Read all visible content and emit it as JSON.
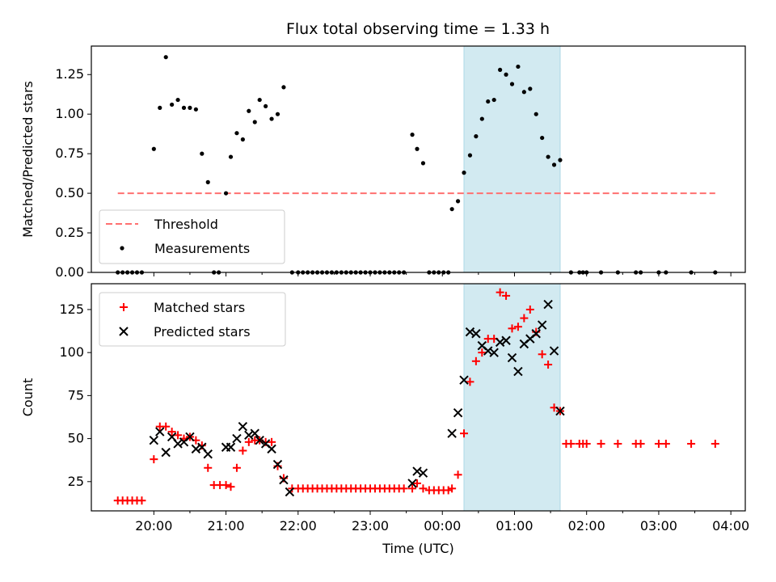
{
  "title": "Flux total observing time = 1.33 h",
  "colors": {
    "threshold": "#ff7070",
    "highlight": "#add8e6",
    "matched": "#ff0000",
    "predicted": "#000000",
    "measurement": "#000000"
  },
  "chart_data": [
    {
      "type": "scatter",
      "ylabel": "Matched/Predicted stars",
      "xlabel": "",
      "x_domain": [
        "19:08",
        "04:12"
      ],
      "ylim": [
        0,
        1.43
      ],
      "yticks": [
        "0.00",
        "0.25",
        "0.50",
        "0.75",
        "1.00",
        "1.25"
      ],
      "legend": {
        "position": "lower-left",
        "entries": [
          "Threshold",
          "Measurements"
        ]
      },
      "highlight": {
        "x0": "00:18",
        "x1": "01:38"
      },
      "threshold": {
        "name": "Threshold",
        "y": 0.5,
        "x": [
          "19:30",
          "03:47"
        ]
      },
      "series": [
        {
          "name": "Measurements",
          "points": [
            [
              "19:30",
              0
            ],
            [
              "19:34",
              0
            ],
            [
              "19:38",
              0
            ],
            [
              "19:42",
              0
            ],
            [
              "19:46",
              0
            ],
            [
              "19:50",
              0
            ],
            [
              "20:00",
              0.78
            ],
            [
              "20:05",
              1.04
            ],
            [
              "20:10",
              1.36
            ],
            [
              "20:15",
              1.06
            ],
            [
              "20:20",
              1.09
            ],
            [
              "20:25",
              1.04
            ],
            [
              "20:30",
              1.04
            ],
            [
              "20:35",
              1.03
            ],
            [
              "20:40",
              0.75
            ],
            [
              "20:45",
              0.57
            ],
            [
              "20:50",
              0
            ],
            [
              "20:54",
              0
            ],
            [
              "21:00",
              0.5
            ],
            [
              "21:04",
              0.73
            ],
            [
              "21:09",
              0.88
            ],
            [
              "21:14",
              0.84
            ],
            [
              "21:19",
              1.02
            ],
            [
              "21:24",
              0.95
            ],
            [
              "21:28",
              1.09
            ],
            [
              "21:33",
              1.05
            ],
            [
              "21:38",
              0.97
            ],
            [
              "21:43",
              1.0
            ],
            [
              "21:48",
              1.17
            ],
            [
              "21:55",
              0
            ],
            [
              "22:00",
              0
            ],
            [
              "22:04",
              0
            ],
            [
              "22:08",
              0
            ],
            [
              "22:12",
              0
            ],
            [
              "22:16",
              0
            ],
            [
              "22:20",
              0
            ],
            [
              "22:24",
              0
            ],
            [
              "22:28",
              0
            ],
            [
              "22:32",
              0
            ],
            [
              "22:36",
              0
            ],
            [
              "22:40",
              0
            ],
            [
              "22:44",
              0
            ],
            [
              "22:48",
              0
            ],
            [
              "22:52",
              0
            ],
            [
              "22:56",
              0
            ],
            [
              "23:00",
              0
            ],
            [
              "23:04",
              0
            ],
            [
              "23:08",
              0
            ],
            [
              "23:12",
              0
            ],
            [
              "23:16",
              0
            ],
            [
              "23:20",
              0
            ],
            [
              "23:24",
              0
            ],
            [
              "23:28",
              0
            ],
            [
              "23:35",
              0.87
            ],
            [
              "23:39",
              0.78
            ],
            [
              "23:44",
              0.69
            ],
            [
              "23:49",
              0
            ],
            [
              "23:53",
              0
            ],
            [
              "23:57",
              0
            ],
            [
              "00:01",
              0
            ],
            [
              "00:05",
              0
            ],
            [
              "00:08",
              0.4
            ],
            [
              "00:13",
              0.45
            ],
            [
              "00:18",
              0.63
            ],
            [
              "00:23",
              0.74
            ],
            [
              "00:28",
              0.86
            ],
            [
              "00:33",
              0.97
            ],
            [
              "00:38",
              1.08
            ],
            [
              "00:43",
              1.09
            ],
            [
              "00:48",
              1.28
            ],
            [
              "00:53",
              1.25
            ],
            [
              "00:58",
              1.19
            ],
            [
              "01:03",
              1.3
            ],
            [
              "01:08",
              1.14
            ],
            [
              "01:13",
              1.16
            ],
            [
              "01:18",
              1.0
            ],
            [
              "01:23",
              0.85
            ],
            [
              "01:28",
              0.73
            ],
            [
              "01:33",
              0.68
            ],
            [
              "01:38",
              0.71
            ],
            [
              "01:47",
              0
            ],
            [
              "01:54",
              0
            ],
            [
              "01:57",
              0
            ],
            [
              "02:00",
              0
            ],
            [
              "02:12",
              0
            ],
            [
              "02:26",
              0
            ],
            [
              "02:41",
              0
            ],
            [
              "02:45",
              0
            ],
            [
              "03:00",
              0
            ],
            [
              "03:06",
              0
            ],
            [
              "03:27",
              0
            ],
            [
              "03:47",
              0
            ]
          ]
        }
      ]
    },
    {
      "type": "scatter",
      "ylabel": "Count",
      "xlabel": "Time (UTC)",
      "x_domain": [
        "19:08",
        "04:12"
      ],
      "ylim": [
        8,
        140
      ],
      "yticks": [
        "25",
        "50",
        "75",
        "100",
        "125"
      ],
      "xticks": [
        "20:00",
        "21:00",
        "22:00",
        "23:00",
        "00:00",
        "01:00",
        "02:00",
        "03:00",
        "04:00"
      ],
      "legend": {
        "position": "top-left",
        "entries": [
          "Matched stars",
          "Predicted stars"
        ]
      },
      "highlight": {
        "x0": "00:18",
        "x1": "01:38"
      },
      "series": [
        {
          "name": "Matched stars",
          "marker": "plus",
          "points": [
            [
              "19:30",
              14
            ],
            [
              "19:34",
              14
            ],
            [
              "19:38",
              14
            ],
            [
              "19:42",
              14
            ],
            [
              "19:46",
              14
            ],
            [
              "19:50",
              14
            ],
            [
              "20:00",
              38
            ],
            [
              "20:05",
              57
            ],
            [
              "20:10",
              57
            ],
            [
              "20:15",
              54
            ],
            [
              "20:20",
              52
            ],
            [
              "20:25",
              50
            ],
            [
              "20:30",
              51
            ],
            [
              "20:35",
              49
            ],
            [
              "20:40",
              46
            ],
            [
              "20:45",
              33
            ],
            [
              "20:50",
              23
            ],
            [
              "20:55",
              23
            ],
            [
              "21:00",
              23
            ],
            [
              "21:04",
              22
            ],
            [
              "21:09",
              33
            ],
            [
              "21:14",
              43
            ],
            [
              "21:19",
              48
            ],
            [
              "21:24",
              49
            ],
            [
              "21:28",
              49
            ],
            [
              "21:33",
              48
            ],
            [
              "21:38",
              48
            ],
            [
              "21:43",
              34
            ],
            [
              "21:48",
              27
            ],
            [
              "21:55",
              21
            ],
            [
              "22:00",
              21
            ],
            [
              "22:04",
              21
            ],
            [
              "22:08",
              21
            ],
            [
              "22:12",
              21
            ],
            [
              "22:16",
              21
            ],
            [
              "22:20",
              21
            ],
            [
              "22:24",
              21
            ],
            [
              "22:28",
              21
            ],
            [
              "22:32",
              21
            ],
            [
              "22:36",
              21
            ],
            [
              "22:40",
              21
            ],
            [
              "22:44",
              21
            ],
            [
              "22:48",
              21
            ],
            [
              "22:52",
              21
            ],
            [
              "22:56",
              21
            ],
            [
              "23:00",
              21
            ],
            [
              "23:04",
              21
            ],
            [
              "23:08",
              21
            ],
            [
              "23:12",
              21
            ],
            [
              "23:16",
              21
            ],
            [
              "23:20",
              21
            ],
            [
              "23:24",
              21
            ],
            [
              "23:28",
              21
            ],
            [
              "23:35",
              21
            ],
            [
              "23:39",
              24
            ],
            [
              "23:44",
              21
            ],
            [
              "23:49",
              20
            ],
            [
              "23:53",
              20
            ],
            [
              "23:57",
              20
            ],
            [
              "00:01",
              20
            ],
            [
              "00:05",
              20
            ],
            [
              "00:08",
              21
            ],
            [
              "00:13",
              29
            ],
            [
              "00:18",
              53
            ],
            [
              "00:23",
              83
            ],
            [
              "00:28",
              95
            ],
            [
              "00:33",
              100
            ],
            [
              "00:38",
              108
            ],
            [
              "00:43",
              108
            ],
            [
              "00:48",
              135
            ],
            [
              "00:53",
              133
            ],
            [
              "00:58",
              114
            ],
            [
              "01:03",
              115
            ],
            [
              "01:08",
              120
            ],
            [
              "01:13",
              125
            ],
            [
              "01:18",
              112
            ],
            [
              "01:23",
              99
            ],
            [
              "01:28",
              93
            ],
            [
              "01:33",
              68
            ],
            [
              "01:38",
              66
            ],
            [
              "01:43",
              47
            ],
            [
              "01:47",
              47
            ],
            [
              "01:54",
              47
            ],
            [
              "01:57",
              47
            ],
            [
              "02:00",
              47
            ],
            [
              "02:12",
              47
            ],
            [
              "02:26",
              47
            ],
            [
              "02:41",
              47
            ],
            [
              "02:45",
              47
            ],
            [
              "03:00",
              47
            ],
            [
              "03:06",
              47
            ],
            [
              "03:27",
              47
            ],
            [
              "03:47",
              47
            ]
          ]
        },
        {
          "name": "Predicted stars",
          "marker": "x",
          "points": [
            [
              "20:00",
              49
            ],
            [
              "20:05",
              54
            ],
            [
              "20:10",
              42
            ],
            [
              "20:15",
              51
            ],
            [
              "20:20",
              47
            ],
            [
              "20:25",
              48
            ],
            [
              "20:30",
              51
            ],
            [
              "20:35",
              44
            ],
            [
              "20:40",
              45
            ],
            [
              "20:45",
              41
            ],
            [
              "21:00",
              45
            ],
            [
              "21:04",
              45
            ],
            [
              "21:09",
              50
            ],
            [
              "21:14",
              57
            ],
            [
              "21:19",
              52
            ],
            [
              "21:24",
              53
            ],
            [
              "21:28",
              49
            ],
            [
              "21:33",
              47
            ],
            [
              "21:38",
              44
            ],
            [
              "21:43",
              35
            ],
            [
              "21:48",
              26
            ],
            [
              "21:53",
              19
            ],
            [
              "23:35",
              24
            ],
            [
              "23:39",
              31
            ],
            [
              "23:44",
              30
            ],
            [
              "00:08",
              53
            ],
            [
              "00:13",
              65
            ],
            [
              "00:18",
              84
            ],
            [
              "00:23",
              112
            ],
            [
              "00:28",
              111
            ],
            [
              "00:33",
              104
            ],
            [
              "00:38",
              101
            ],
            [
              "00:43",
              100
            ],
            [
              "00:48",
              106
            ],
            [
              "00:53",
              107
            ],
            [
              "00:58",
              97
            ],
            [
              "01:03",
              89
            ],
            [
              "01:08",
              105
            ],
            [
              "01:13",
              108
            ],
            [
              "01:18",
              111
            ],
            [
              "01:23",
              116
            ],
            [
              "01:28",
              128
            ],
            [
              "01:33",
              101
            ],
            [
              "01:38",
              66
            ]
          ]
        }
      ]
    }
  ]
}
